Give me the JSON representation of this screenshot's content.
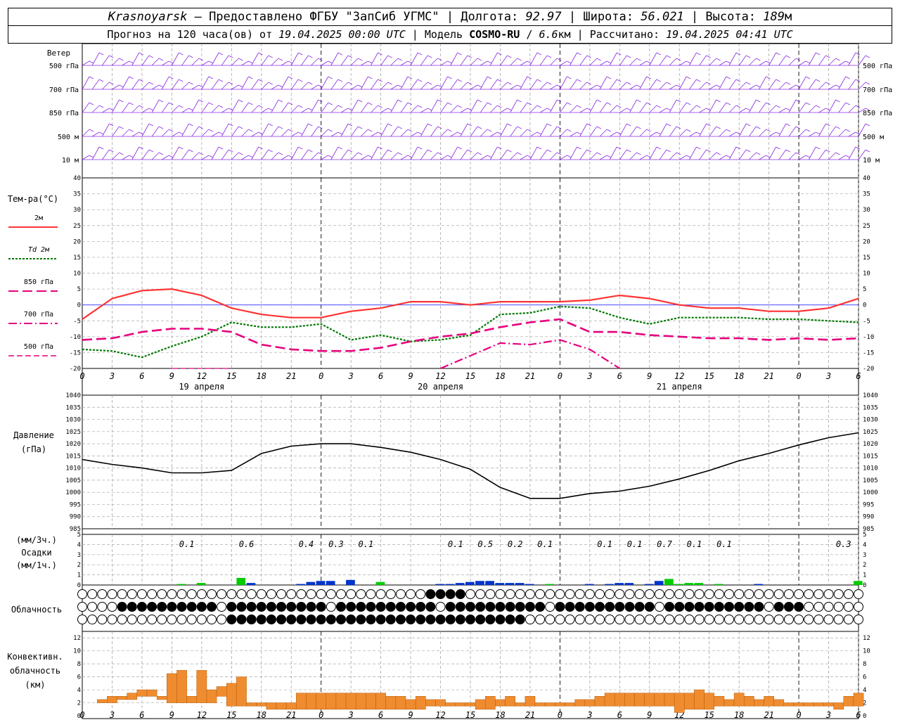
{
  "header": {
    "station": "Krasnoyarsk",
    "dash": "—",
    "provider": "Предоставлено ФГБУ \"ЗапСиб УГМС\"",
    "lon_label": "Долгота:",
    "lon": "92.97",
    "lat_label": "Широта:",
    "lat": "56.021",
    "alt_label": "Высота:",
    "alt": "189",
    "alt_unit": "м",
    "forecast_prefix": "Прогноз на 120 часа(ов) от",
    "forecast_start": "19.04.2025 00:00 UTC",
    "model_label": "Модель",
    "model": "COSMO-RU",
    "model_res": "6.6",
    "model_res_unit": "км",
    "computed_label": "Рассчитано:",
    "computed": "19.04.2025 04:41 UTC"
  },
  "colors": {
    "wind": "#8a2be2",
    "t2m": "#ff3333",
    "td2m": "#007700",
    "t850": "#e6007e",
    "t700": "#e6007e",
    "t500": "#e6007e",
    "pressure": "#000000",
    "precip_convective": "#00cc00",
    "precip_large": "#0033cc",
    "conv_cloud": "#f08c30",
    "zero_line": "#3030ff"
  },
  "panels": {
    "wind": {
      "title": "Ветер",
      "levels": [
        "500 гПа",
        "700 гПа",
        "850 гПа",
        "500 м",
        "10 м"
      ]
    },
    "temperature": {
      "title": "Тем-ра(°C)",
      "legend": [
        {
          "label": "2м",
          "style": "solid"
        },
        {
          "label": "Td 2м",
          "style": "dotted"
        },
        {
          "label": "850 гПа",
          "style": "dashed"
        },
        {
          "label": "700 гПа",
          "style": "dashdot"
        },
        {
          "label": "500 гПа",
          "style": "dashed-thin"
        }
      ],
      "y_ticks": [
        "40",
        "35",
        "30",
        "25",
        "20",
        "15",
        "10",
        "5",
        "0",
        "-5",
        "-10",
        "-15",
        "-20"
      ]
    },
    "pressure": {
      "title": "Давление",
      "unit": "(гПа)",
      "y_ticks": [
        "1040",
        "1035",
        "1030",
        "1025",
        "1020",
        "1015",
        "1010",
        "1005",
        "1000",
        "995",
        "990",
        "985"
      ]
    },
    "precip": {
      "unit3": "(мм/3ч.)",
      "title": "Осадки",
      "unit1": "(мм/1ч.)",
      "y_ticks": [
        "5",
        "4",
        "3",
        "2",
        "1",
        "0"
      ]
    },
    "cloud": {
      "title": "Облачность"
    },
    "conv": {
      "title1": "Конвективн.",
      "title2": "облачность",
      "unit": "(км)",
      "y_ticks": [
        "12",
        "10",
        "8",
        "6",
        "4",
        "2",
        "0"
      ]
    }
  },
  "x_axis": {
    "hour_labels": [
      "0",
      "3",
      "6",
      "9",
      "12",
      "15",
      "18",
      "21",
      "0",
      "3",
      "6",
      "9",
      "12",
      "15",
      "18",
      "21",
      "0",
      "3",
      "6",
      "9",
      "12",
      "15",
      "18",
      "21",
      "0",
      "3",
      "6"
    ],
    "day_labels": [
      "19 апреля",
      "20 апреля",
      "21 апреля"
    ]
  },
  "chart_data": [
    {
      "type": "line",
      "title": "Тем-ра(°C)",
      "x_hours": [
        0,
        3,
        6,
        9,
        12,
        15,
        18,
        21,
        24,
        27,
        30,
        33,
        36,
        39,
        42,
        45,
        48,
        51,
        54,
        57,
        60,
        63,
        66,
        69,
        72,
        75,
        78
      ],
      "ylim": [
        -20,
        40
      ],
      "series": [
        {
          "name": "2м",
          "values": [
            -4.5,
            2,
            4.5,
            5,
            3,
            -1,
            -3,
            -4,
            -4,
            -2,
            -1,
            1,
            1,
            0,
            1,
            1,
            1,
            1.5,
            3,
            2,
            0,
            -1,
            -1,
            -2,
            -2,
            -1,
            2
          ]
        },
        {
          "name": "Td 2м",
          "values": [
            -14,
            -14.5,
            -16.5,
            -13,
            -10,
            -5.5,
            -7,
            -7,
            -6,
            -11,
            -9.5,
            -11.5,
            -11,
            -9.5,
            -3,
            -2.5,
            -0.5,
            -1,
            -4,
            -6,
            -4,
            -4,
            -4,
            -4.5,
            -4.5,
            -5,
            -5.5
          ]
        },
        {
          "name": "850 гПа",
          "values": [
            -11,
            -10.5,
            -8.5,
            -7.5,
            -7.5,
            -8.5,
            -12.5,
            -14,
            -14.5,
            -14.5,
            -13.5,
            -11.5,
            -10,
            -9,
            -7,
            -5.5,
            -4.5,
            -8.5,
            -8.5,
            -9.5,
            -10,
            -10.5,
            -10.5,
            -11,
            -10.5,
            -11,
            -10.5
          ]
        },
        {
          "name": "700 гПа",
          "values": [
            null,
            null,
            null,
            null,
            null,
            null,
            null,
            null,
            null,
            null,
            null,
            null,
            -20,
            -16,
            -12,
            -12.5,
            -11,
            -14,
            -20,
            null,
            null,
            null,
            null,
            null,
            null,
            null,
            null
          ]
        },
        {
          "name": "500 гПа",
          "values": [
            null,
            null,
            null,
            -20,
            -20,
            -20,
            null,
            null,
            null,
            null,
            null,
            null,
            null,
            null,
            null,
            null,
            null,
            null,
            null,
            null,
            null,
            null,
            null,
            null,
            null,
            null,
            null
          ]
        }
      ]
    },
    {
      "type": "line",
      "title": "Давление",
      "ylabel": "(гПа)",
      "x_hours": [
        0,
        3,
        6,
        9,
        12,
        15,
        18,
        21,
        24,
        27,
        30,
        33,
        36,
        39,
        42,
        45,
        48,
        51,
        54,
        57,
        60,
        63,
        66,
        69,
        72,
        75,
        78
      ],
      "ylim": [
        985,
        1040
      ],
      "series": [
        {
          "name": "",
          "values": [
            1013.5,
            1011.5,
            1010,
            1008,
            1008,
            1009,
            1016,
            1019,
            1020,
            1020,
            1018.5,
            1016.5,
            1013.5,
            1009.5,
            1002,
            997.5,
            997.5,
            999.5,
            1000.5,
            1002.5,
            1005.5,
            1009,
            1013,
            1016,
            1019.5,
            1022.5,
            1024.5
          ]
        }
      ]
    },
    {
      "type": "bar",
      "title": "Осадки",
      "x_hours": [
        2,
        4,
        6,
        8,
        10,
        11,
        12,
        14,
        15,
        16,
        17,
        18,
        20,
        22,
        23,
        24,
        25,
        26,
        27,
        28,
        29,
        30,
        31,
        32,
        33,
        34,
        36,
        37,
        38,
        39,
        40,
        41,
        42,
        43,
        44,
        45,
        46,
        47,
        48,
        50,
        51,
        52,
        53,
        54,
        55,
        56,
        57,
        58,
        59,
        60,
        61,
        62,
        64,
        66,
        68,
        70,
        72,
        74,
        76,
        77,
        78
      ],
      "ylim": [
        0,
        5
      ],
      "series": [
        {
          "name": "convective",
          "values": [
            0,
            0,
            0,
            0,
            0.1,
            0,
            0.2,
            0,
            0,
            0.7,
            0,
            0,
            0,
            0,
            0,
            0,
            0,
            0,
            0,
            0,
            0,
            0.3,
            0,
            0,
            0,
            0,
            0,
            0,
            0,
            0,
            0,
            0,
            0,
            0,
            0,
            0,
            0,
            0.1,
            0,
            0,
            0,
            0,
            0,
            0,
            0,
            0,
            0,
            0,
            0.6,
            0.1,
            0.2,
            0.2,
            0.1,
            0,
            0,
            0,
            0,
            0,
            0,
            0,
            0.4
          ]
        },
        {
          "name": "large-scale",
          "values": [
            0,
            0,
            0,
            0,
            0,
            0,
            0,
            0,
            0,
            0,
            0.2,
            0,
            0,
            0.1,
            0.3,
            0.4,
            0.4,
            0,
            0.5,
            0,
            0,
            0,
            0,
            0,
            0,
            0,
            0.1,
            0.1,
            0.2,
            0.3,
            0.4,
            0.4,
            0.2,
            0.2,
            0.2,
            0.1,
            0,
            0,
            0,
            0,
            0.1,
            0,
            0.1,
            0.2,
            0.2,
            0,
            0.1,
            0.4,
            0.2,
            0.1,
            0,
            0,
            0,
            0,
            0.1,
            0,
            0,
            0,
            0,
            0,
            0
          ]
        }
      ],
      "labels_3h": [
        {
          "hour": 10.5,
          "text": "0.1"
        },
        {
          "hour": 16.5,
          "text": "0.6"
        },
        {
          "hour": 22.5,
          "text": "0.4"
        },
        {
          "hour": 25.5,
          "text": "0.3"
        },
        {
          "hour": 28.5,
          "text": "0.1"
        },
        {
          "hour": 37.5,
          "text": "0.1"
        },
        {
          "hour": 40.5,
          "text": "0.5"
        },
        {
          "hour": 43.5,
          "text": "0.2"
        },
        {
          "hour": 46.5,
          "text": "0.1"
        },
        {
          "hour": 52.5,
          "text": "0.1"
        },
        {
          "hour": 55.5,
          "text": "0.1"
        },
        {
          "hour": 58.5,
          "text": "0.7"
        },
        {
          "hour": 61.5,
          "text": "0.1"
        },
        {
          "hour": 64.5,
          "text": "0.1"
        },
        {
          "hour": 76.5,
          "text": "0.3"
        }
      ]
    },
    {
      "type": "bar",
      "title": "Конвективн. облачность",
      "ylabel": "(км)",
      "ylim": [
        0,
        13
      ],
      "x_hours": [
        2,
        3,
        4,
        5,
        6,
        7,
        8,
        9,
        10,
        11,
        12,
        13,
        14,
        15,
        16,
        17,
        18,
        19,
        20,
        21,
        22,
        23,
        24,
        25,
        26,
        27,
        28,
        29,
        30,
        31,
        32,
        33,
        34,
        35,
        36,
        37,
        38,
        39,
        40,
        41,
        42,
        43,
        44,
        45,
        46,
        47,
        48,
        49,
        50,
        51,
        52,
        53,
        54,
        55,
        56,
        57,
        58,
        59,
        60,
        61,
        62,
        63,
        64,
        65,
        66,
        67,
        68,
        69,
        70,
        71,
        72,
        73,
        74,
        75,
        76,
        77,
        78
      ],
      "series": [
        {
          "name": "base",
          "values": [
            2,
            2,
            2.5,
            2.5,
            3,
            3,
            2.5,
            2,
            2,
            2,
            2,
            2,
            3,
            1.5,
            1.5,
            1.5,
            1.5,
            1,
            1,
            1,
            1,
            1,
            1,
            1,
            1,
            1,
            1,
            1,
            1,
            1,
            1,
            1,
            1,
            1.5,
            1.5,
            1.5,
            1.5,
            1.5,
            1,
            1,
            1.5,
            1.5,
            1.5,
            1.5,
            1.5,
            1.5,
            1.5,
            1.5,
            1.5,
            1.5,
            1.5,
            1.5,
            1.5,
            1.5,
            1.5,
            1.5,
            1.5,
            1.5,
            0.5,
            1,
            1,
            1,
            1.5,
            1.5,
            1.5,
            1.5,
            1.5,
            1.5,
            1.5,
            1.5,
            1.5,
            1.5,
            1.5,
            1.5,
            1,
            1.5,
            1.5
          ]
        },
        {
          "name": "top",
          "values": [
            2.5,
            3,
            3,
            3.5,
            4,
            4,
            3,
            6.5,
            7,
            3,
            7,
            4,
            4.5,
            5,
            6,
            2,
            2,
            2,
            2,
            2,
            3.5,
            3.5,
            3.5,
            3.5,
            3.5,
            3.5,
            3.5,
            3.5,
            3.5,
            3,
            3,
            2.5,
            3,
            2.5,
            2.5,
            2,
            2,
            2,
            2.5,
            3,
            2.5,
            3,
            2,
            3,
            2,
            2,
            2,
            2,
            2.5,
            2.5,
            3,
            3.5,
            3.5,
            3.5,
            3.5,
            3.5,
            3.5,
            3.5,
            3.5,
            3.5,
            4,
            3.5,
            3,
            2.5,
            3.5,
            3,
            2.5,
            3,
            2.5,
            2,
            2,
            2,
            2,
            2,
            2,
            3,
            3.5
          ]
        }
      ]
    }
  ]
}
